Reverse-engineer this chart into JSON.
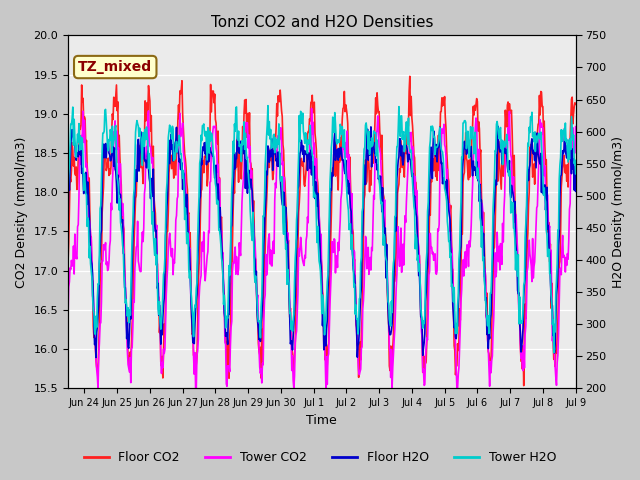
{
  "title": "Tonzi CO2 and H2O Densities",
  "xlabel": "Time",
  "ylabel_left": "CO2 Density (mmol/m3)",
  "ylabel_right": "H2O Density (mmol/m3)",
  "ylim_left": [
    15.5,
    20.0
  ],
  "ylim_right": [
    200,
    750
  ],
  "xtick_labels": [
    "Jun 24",
    "Jun 25",
    "Jun 26",
    "Jun 27",
    "Jun 28",
    "Jun 29",
    "Jun 30",
    "Jul 1",
    "Jul 2",
    "Jul 3",
    "Jul 4",
    "Jul 5",
    "Jul 6",
    "Jul 7",
    "Jul 8",
    "Jul 9"
  ],
  "annotation_text": "TZ_mixed",
  "annotation_color": "#8B0000",
  "annotation_bg": "#FFFFCC",
  "annotation_border": "#8B6914",
  "colors": {
    "floor_co2": "#FF2020",
    "tower_co2": "#FF00FF",
    "floor_h2o": "#0000CC",
    "tower_h2o": "#00CCCC"
  },
  "background_color": "#C8C8C8",
  "plot_bg": "#EBEBEB",
  "linewidth": 1.2,
  "yticks_left": [
    15.5,
    16.0,
    16.5,
    17.0,
    17.5,
    18.0,
    18.5,
    19.0,
    19.5,
    20.0
  ],
  "yticks_right": [
    200,
    250,
    300,
    350,
    400,
    450,
    500,
    550,
    600,
    650,
    700,
    750
  ]
}
